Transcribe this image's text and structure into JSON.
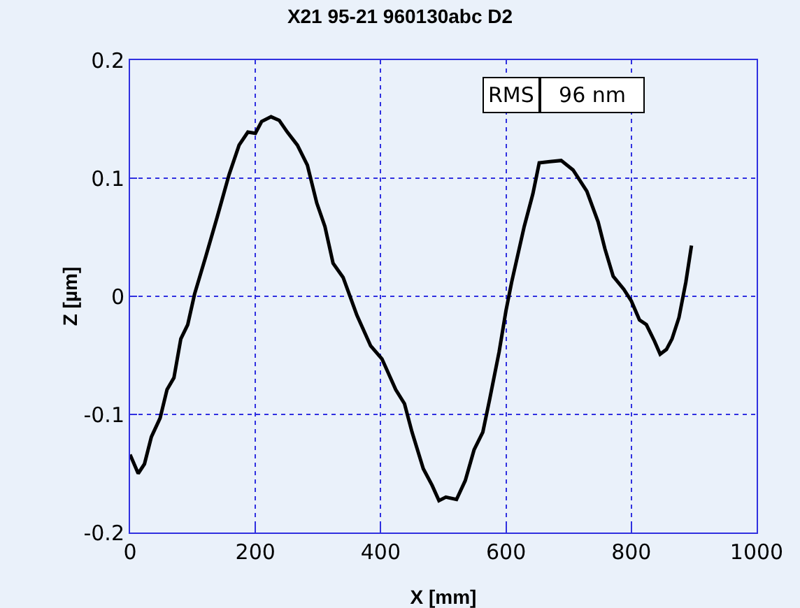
{
  "chart_data": {
    "type": "line",
    "title": "X21 95-21 960130abc D2",
    "xlabel": "X [mm]",
    "ylabel": "Z [µm]",
    "annotations": [
      "RMS",
      "96 nm"
    ],
    "xlim": [
      0,
      1000
    ],
    "xticks": [
      0,
      200,
      400,
      600,
      800,
      1000
    ],
    "ylim": [
      -0.2,
      0.2
    ],
    "yticks": [
      -0.2,
      -0.1,
      0,
      0.1,
      0.2
    ],
    "grid": true,
    "line_style": "solid",
    "marker": "none",
    "series": [
      {
        "color": "#000000",
        "x": [
          0,
          13,
          23,
          34,
          48,
          59,
          70,
          81,
          92,
          103,
          121,
          139,
          158,
          174,
          188,
          200,
          210,
          225,
          238,
          251,
          267,
          283,
          298,
          311,
          324,
          340,
          362,
          384,
          402,
          424,
          438,
          450,
          468,
          482,
          493,
          504,
          521,
          535,
          549,
          563,
          574,
          589,
          600,
          609,
          629,
          643,
          653,
          670,
          688,
          707,
          729,
          747,
          758,
          771,
          788,
          800,
          813,
          824,
          837,
          846,
          856,
          865,
          876,
          887,
          896
        ],
        "values": [
          -0.134,
          -0.15,
          -0.142,
          -0.119,
          -0.103,
          -0.079,
          -0.069,
          -0.036,
          -0.024,
          0.002,
          0.034,
          0.067,
          0.103,
          0.128,
          0.139,
          0.138,
          0.148,
          0.152,
          0.149,
          0.139,
          0.128,
          0.111,
          0.079,
          0.059,
          0.028,
          0.016,
          -0.016,
          -0.042,
          -0.053,
          -0.079,
          -0.091,
          -0.115,
          -0.146,
          -0.16,
          -0.173,
          -0.17,
          -0.172,
          -0.156,
          -0.13,
          -0.115,
          -0.087,
          -0.047,
          -0.012,
          0.012,
          0.059,
          0.087,
          0.113,
          0.114,
          0.115,
          0.107,
          0.089,
          0.063,
          0.04,
          0.017,
          0.006,
          -0.004,
          -0.02,
          -0.024,
          -0.038,
          -0.049,
          -0.045,
          -0.036,
          -0.018,
          0.012,
          0.043
        ]
      }
    ]
  }
}
